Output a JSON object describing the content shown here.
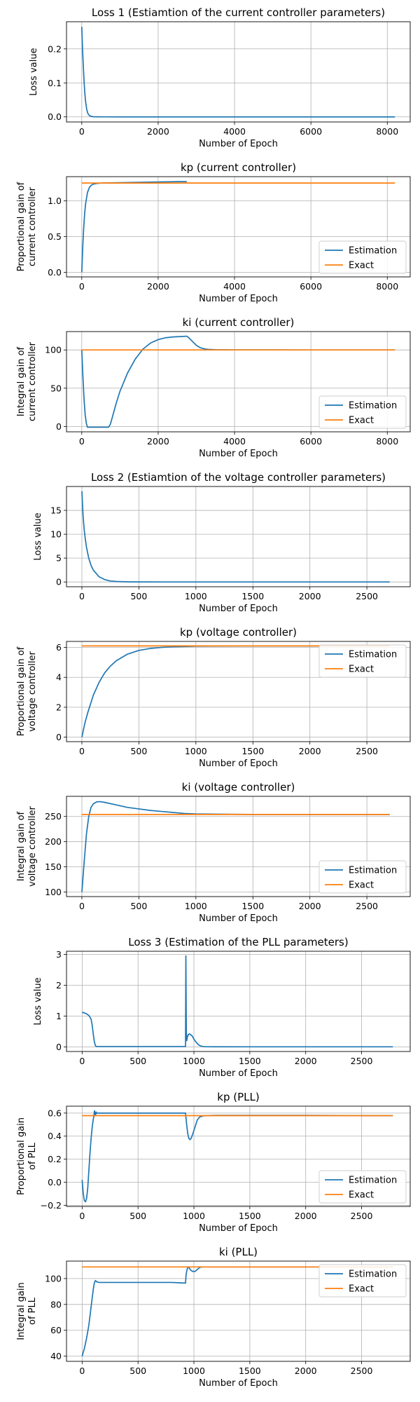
{
  "colors": {
    "estimation": "#1f77b4",
    "exact": "#ff7f0e",
    "grid": "#b0b0b0",
    "frame": "#000000"
  },
  "chart_data": [
    {
      "type": "line",
      "title": "Loss 1 (Estiamtion of the current controller parameters)",
      "xlabel": "Number of Epoch",
      "ylabel": [
        "Loss value"
      ],
      "xlim": [
        -400,
        8600
      ],
      "ylim": [
        -0.015,
        0.28
      ],
      "xticks": [
        0,
        2000,
        4000,
        6000,
        8000
      ],
      "xticklabels": [
        "0",
        "2000",
        "4000",
        "6000",
        "8000"
      ],
      "yticks": [
        0.0,
        0.1,
        0.2
      ],
      "yticklabels": [
        "0.0",
        "0.1",
        "0.2"
      ],
      "grid": true,
      "legend": null,
      "series": [
        {
          "color": "#1f77b4",
          "x": [
            0,
            20,
            40,
            60,
            80,
            100,
            130,
            160,
            200,
            250,
            300,
            400,
            600,
            1000,
            2000,
            4000,
            6000,
            8200
          ],
          "y": [
            0.265,
            0.2,
            0.15,
            0.105,
            0.07,
            0.045,
            0.022,
            0.01,
            0.004,
            0.0015,
            0.0005,
            0.0002,
            0.0001,
            0,
            0,
            0,
            0,
            0
          ]
        }
      ]
    },
    {
      "type": "line",
      "title": "kp (current controller)",
      "xlabel": "Number of Epoch",
      "ylabel": [
        "Proportional gain of",
        "current controller"
      ],
      "xlim": [
        -400,
        8600
      ],
      "ylim": [
        -0.065,
        1.34
      ],
      "xticks": [
        0,
        2000,
        4000,
        6000,
        8000
      ],
      "xticklabels": [
        "0",
        "2000",
        "4000",
        "6000",
        "8000"
      ],
      "yticks": [
        0.0,
        0.5,
        1.0
      ],
      "yticklabels": [
        "0.0",
        "0.5",
        "1.0"
      ],
      "grid": true,
      "legend": "lower right",
      "series": [
        {
          "name": "Estimation",
          "color": "#1f77b4",
          "x": [
            0,
            25,
            50,
            75,
            100,
            150,
            200,
            250,
            300,
            400,
            500,
            1000,
            1500,
            2000,
            2500,
            2750
          ],
          "y": [
            0.0,
            0.35,
            0.62,
            0.82,
            0.96,
            1.12,
            1.19,
            1.22,
            1.235,
            1.245,
            1.25,
            1.255,
            1.26,
            1.265,
            1.27,
            1.27
          ]
        },
        {
          "name": "Exact",
          "color": "#ff7f0e",
          "x": [
            0,
            8200
          ],
          "y": [
            1.25,
            1.25
          ]
        }
      ]
    },
    {
      "type": "line",
      "title": "ki (current controller)",
      "xlabel": "Number of Epoch",
      "ylabel": [
        "Integral gain of",
        "current controller"
      ],
      "xlim": [
        -400,
        8600
      ],
      "ylim": [
        -7,
        124
      ],
      "xticks": [
        0,
        2000,
        4000,
        6000,
        8000
      ],
      "xticklabels": [
        "0",
        "2000",
        "4000",
        "6000",
        "8000"
      ],
      "yticks": [
        0,
        50,
        100
      ],
      "yticklabels": [
        "0",
        "50",
        "100"
      ],
      "grid": true,
      "legend": "lower right",
      "series": [
        {
          "name": "Estimation",
          "color": "#1f77b4",
          "x": [
            0,
            30,
            60,
            90,
            120,
            150,
            200,
            400,
            600,
            700,
            750,
            800,
            900,
            1000,
            1200,
            1400,
            1600,
            1800,
            2000,
            2200,
            2400,
            2600,
            2750,
            2800,
            2900,
            3000,
            3100,
            3200,
            3300,
            3500,
            4000,
            6000,
            8200
          ],
          "y": [
            100,
            65,
            35,
            15,
            4,
            -1,
            -1,
            -1,
            -1,
            -1,
            3,
            12,
            30,
            46,
            70,
            88,
            101,
            109,
            113.5,
            116,
            117,
            117.5,
            118,
            116,
            111,
            106,
            103,
            101.5,
            100.8,
            100.3,
            100.1,
            100,
            100
          ]
        },
        {
          "name": "Exact",
          "color": "#ff7f0e",
          "x": [
            0,
            8200
          ],
          "y": [
            100,
            100
          ]
        }
      ]
    },
    {
      "type": "line",
      "title": "Loss 2 (Estiamtion of the voltage controller parameters)",
      "xlabel": "Number of Epoch",
      "ylabel": [
        "Loss value"
      ],
      "xlim": [
        -135,
        2880
      ],
      "ylim": [
        -1,
        20
      ],
      "xticks": [
        0,
        500,
        1000,
        1500,
        2000,
        2500
      ],
      "xticklabels": [
        "0",
        "500",
        "1000",
        "1500",
        "2000",
        "2500"
      ],
      "yticks": [
        0,
        5,
        10,
        15
      ],
      "yticklabels": [
        "0",
        "5",
        "10",
        "15"
      ],
      "grid": true,
      "legend": null,
      "series": [
        {
          "color": "#1f77b4",
          "x": [
            0,
            10,
            20,
            30,
            40,
            60,
            80,
            100,
            150,
            200,
            250,
            300,
            400,
            500,
            700,
            1000,
            1500,
            2000,
            2700
          ],
          "y": [
            19,
            14,
            11,
            9,
            7.3,
            5,
            3.5,
            2.5,
            1.1,
            0.5,
            0.2,
            0.1,
            0.03,
            0.01,
            0,
            0,
            0,
            0,
            0
          ]
        }
      ]
    },
    {
      "type": "line",
      "title": "kp (voltage controller)",
      "xlabel": "Number of Epoch",
      "ylabel": [
        "Proportional gain of",
        "voltage controller"
      ],
      "xlim": [
        -135,
        2880
      ],
      "ylim": [
        -0.3,
        6.4
      ],
      "xticks": [
        0,
        500,
        1000,
        1500,
        2000,
        2500
      ],
      "xticklabels": [
        "0",
        "500",
        "1000",
        "1500",
        "2000",
        "2500"
      ],
      "yticks": [
        0,
        2,
        4,
        6
      ],
      "yticklabels": [
        "0",
        "2",
        "4",
        "6"
      ],
      "grid": true,
      "legend": "upper right",
      "series": [
        {
          "name": "Estimation",
          "color": "#1f77b4",
          "x": [
            0,
            25,
            50,
            100,
            150,
            200,
            250,
            300,
            400,
            500,
            600,
            700,
            800,
            1000,
            1500,
            2000,
            2700
          ],
          "y": [
            0,
            0.9,
            1.6,
            2.8,
            3.65,
            4.3,
            4.75,
            5.1,
            5.55,
            5.8,
            5.93,
            6.0,
            6.04,
            6.08,
            6.1,
            6.1,
            6.1
          ]
        },
        {
          "name": "Exact",
          "color": "#ff7f0e",
          "x": [
            0,
            2700
          ],
          "y": [
            6.1,
            6.1
          ]
        }
      ]
    },
    {
      "type": "line",
      "title": "ki (voltage controller)",
      "xlabel": "Number of Epoch",
      "ylabel": [
        "Integral gain of",
        "voltage controller"
      ],
      "xlim": [
        -135,
        2880
      ],
      "ylim": [
        91,
        290
      ],
      "xticks": [
        0,
        500,
        1000,
        1500,
        2000,
        2500
      ],
      "xticklabels": [
        "0",
        "500",
        "1000",
        "1500",
        "2000",
        "2500"
      ],
      "yticks": [
        100,
        150,
        200,
        250
      ],
      "yticklabels": [
        "100",
        "150",
        "200",
        "250"
      ],
      "grid": true,
      "legend": "lower right",
      "series": [
        {
          "name": "Estimation",
          "color": "#1f77b4",
          "x": [
            0,
            20,
            40,
            60,
            80,
            100,
            130,
            160,
            200,
            300,
            400,
            500,
            600,
            700,
            800,
            900,
            1000,
            1200,
            1500,
            2000,
            2700
          ],
          "y": [
            100,
            160,
            215,
            250,
            268,
            275,
            279,
            279.5,
            278,
            273,
            268,
            265,
            262,
            260,
            258,
            256,
            255,
            254.5,
            254,
            254,
            254
          ]
        },
        {
          "name": "Exact",
          "color": "#ff7f0e",
          "x": [
            0,
            2700
          ],
          "y": [
            254,
            254
          ]
        }
      ]
    },
    {
      "type": "line",
      "title": "Loss 3 (Estimation of the PLL parameters)",
      "xlabel": "Number of Epoch",
      "ylabel": [
        "Loss value"
      ],
      "xlim": [
        -140,
        2935
      ],
      "ylim": [
        -0.15,
        3.1
      ],
      "xticks": [
        0,
        500,
        1000,
        1500,
        2000,
        2500
      ],
      "xticklabels": [
        "0",
        "500",
        "1000",
        "1500",
        "2000",
        "2500"
      ],
      "yticks": [
        0,
        1,
        2,
        3
      ],
      "yticklabels": [
        "0",
        "1",
        "2",
        "3"
      ],
      "grid": true,
      "legend": null,
      "series": [
        {
          "color": "#1f77b4",
          "x": [
            0,
            20,
            40,
            60,
            80,
            90,
            100,
            110,
            120,
            130,
            150,
            200,
            400,
            600,
            800,
            925,
            928,
            932,
            936,
            940,
            950,
            960,
            970,
            985,
            1000,
            1020,
            1040,
            1060,
            1080,
            1100,
            1200,
            1500,
            2000,
            2500,
            2780
          ],
          "y": [
            1.12,
            1.1,
            1.07,
            1.02,
            0.9,
            0.7,
            0.4,
            0.15,
            0.03,
            0.01,
            0.01,
            0.01,
            0.01,
            0.01,
            0.01,
            0.01,
            2.95,
            0.5,
            0.2,
            0.3,
            0.4,
            0.42,
            0.4,
            0.35,
            0.25,
            0.15,
            0.07,
            0.03,
            0.01,
            0.005,
            0.003,
            0.002,
            0.002,
            0.002,
            0.002
          ]
        }
      ]
    },
    {
      "type": "line",
      "title": "kp (PLL)",
      "xlabel": "Number of Epoch",
      "ylabel": [
        "Proportional gain",
        "of PLL"
      ],
      "xlim": [
        -140,
        2935
      ],
      "ylim": [
        -0.21,
        0.66
      ],
      "xticks": [
        0,
        500,
        1000,
        1500,
        2000,
        2500
      ],
      "xticklabels": [
        "0",
        "500",
        "1000",
        "1500",
        "2000",
        "2500"
      ],
      "yticks": [
        -0.2,
        0.0,
        0.2,
        0.4,
        0.6
      ],
      "yticklabels": [
        "−0.2",
        "0.0",
        "0.2",
        "0.4",
        "0.6"
      ],
      "grid": true,
      "legend": "lower right",
      "series": [
        {
          "name": "Estimation",
          "color": "#1f77b4",
          "x": [
            0,
            10,
            20,
            30,
            40,
            50,
            60,
            70,
            80,
            90,
            100,
            105,
            110,
            115,
            120,
            125,
            130,
            150,
            200,
            400,
            600,
            800,
            925,
            935,
            945,
            955,
            965,
            975,
            990,
            1010,
            1030,
            1050,
            1080,
            1100,
            1200,
            1500,
            2000,
            2500,
            2780
          ],
          "y": [
            0.02,
            -0.1,
            -0.16,
            -0.17,
            -0.14,
            -0.05,
            0.1,
            0.25,
            0.38,
            0.48,
            0.55,
            0.57,
            0.62,
            0.6,
            0.58,
            0.61,
            0.6,
            0.6,
            0.6,
            0.6,
            0.6,
            0.6,
            0.6,
            0.5,
            0.42,
            0.38,
            0.37,
            0.38,
            0.42,
            0.48,
            0.54,
            0.565,
            0.575,
            0.578,
            0.58,
            0.58,
            0.58,
            0.578,
            0.578
          ]
        },
        {
          "name": "Exact",
          "color": "#ff7f0e",
          "x": [
            0,
            2780
          ],
          "y": [
            0.578,
            0.578
          ]
        }
      ]
    },
    {
      "type": "line",
      "title": "ki (PLL)",
      "xlabel": "Number of Epoch",
      "ylabel": [
        "Integral gain",
        "of PLL"
      ],
      "xlim": [
        -140,
        2935
      ],
      "ylim": [
        36,
        113.5
      ],
      "xticks": [
        0,
        500,
        1000,
        1500,
        2000,
        2500
      ],
      "xticklabels": [
        "0",
        "500",
        "1000",
        "1500",
        "2000",
        "2500"
      ],
      "yticks": [
        40,
        60,
        80,
        100
      ],
      "yticklabels": [
        "40",
        "60",
        "80",
        "100"
      ],
      "grid": true,
      "legend": "upper right",
      "series": [
        {
          "name": "Estimation",
          "color": "#1f77b4",
          "x": [
            0,
            20,
            40,
            60,
            80,
            100,
            110,
            120,
            130,
            150,
            200,
            400,
            600,
            800,
            925,
            930,
            940,
            950,
            960,
            970,
            990,
            1010,
            1030,
            1050,
            1070,
            1100,
            1200,
            1500,
            2000,
            2500,
            2780
          ],
          "y": [
            40,
            46,
            54,
            64,
            78,
            92,
            97,
            98.5,
            97.5,
            97,
            97,
            97,
            97,
            97,
            96.5,
            103,
            107.5,
            109,
            108,
            106.5,
            105.5,
            105.5,
            107,
            108.5,
            109,
            109,
            109,
            109,
            109,
            109,
            109
          ]
        },
        {
          "name": "Exact",
          "color": "#ff7f0e",
          "x": [
            0,
            2780
          ],
          "y": [
            109,
            109
          ]
        }
      ]
    }
  ]
}
